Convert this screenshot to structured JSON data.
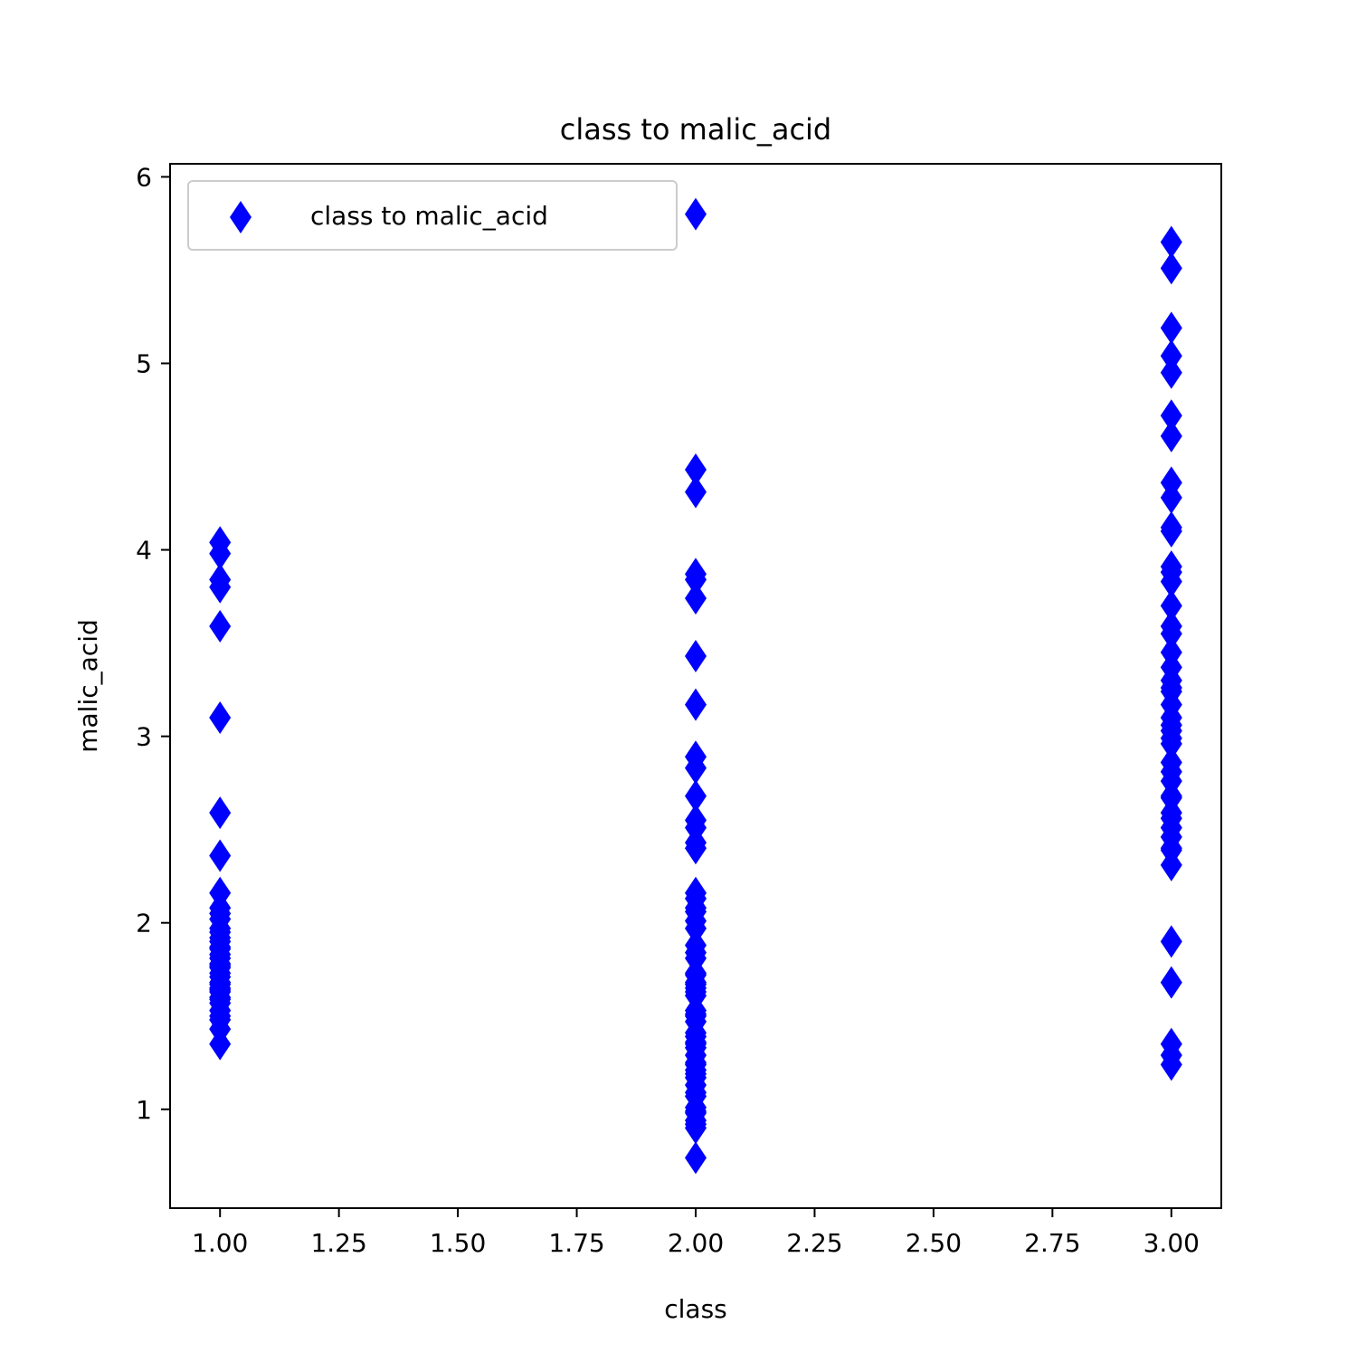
{
  "chart_data": {
    "type": "scatter",
    "title": "class to malic_acid",
    "xlabel": "class",
    "ylabel": "malic_acid",
    "xlim": [
      0.895,
      3.105
    ],
    "ylim": [
      0.47,
      6.07
    ],
    "x_ticks": [
      1.0,
      1.25,
      1.5,
      1.75,
      2.0,
      2.25,
      2.5,
      2.75,
      3.0
    ],
    "x_tick_labels": [
      "1.00",
      "1.25",
      "1.50",
      "1.75",
      "2.00",
      "2.25",
      "2.50",
      "2.75",
      "3.00"
    ],
    "y_ticks": [
      1,
      2,
      3,
      4,
      5,
      6
    ],
    "y_tick_labels": [
      "1",
      "2",
      "3",
      "4",
      "5",
      "6"
    ],
    "grid": false,
    "legend": {
      "position": "upper-left",
      "entries": [
        "class to malic_acid"
      ]
    },
    "marker": "diamond",
    "color": "#0000ff",
    "series": [
      {
        "name": "class to malic_acid",
        "points": [
          [
            1,
            4.04
          ],
          [
            1,
            3.98
          ],
          [
            1,
            3.84
          ],
          [
            1,
            3.8
          ],
          [
            1,
            3.59
          ],
          [
            1,
            3.1
          ],
          [
            1,
            2.59
          ],
          [
            1,
            2.36
          ],
          [
            1,
            2.16
          ],
          [
            1,
            2.08
          ],
          [
            1,
            2.05
          ],
          [
            1,
            2.02
          ],
          [
            1,
            1.97
          ],
          [
            1,
            1.95
          ],
          [
            1,
            1.92
          ],
          [
            1,
            1.9
          ],
          [
            1,
            1.87
          ],
          [
            1,
            1.86
          ],
          [
            1,
            1.83
          ],
          [
            1,
            1.81
          ],
          [
            1,
            1.78
          ],
          [
            1,
            1.77
          ],
          [
            1,
            1.76
          ],
          [
            1,
            1.73
          ],
          [
            1,
            1.71
          ],
          [
            1,
            1.68
          ],
          [
            1,
            1.67
          ],
          [
            1,
            1.65
          ],
          [
            1,
            1.64
          ],
          [
            1,
            1.63
          ],
          [
            1,
            1.6
          ],
          [
            1,
            1.59
          ],
          [
            1,
            1.57
          ],
          [
            1,
            1.53
          ],
          [
            1,
            1.5
          ],
          [
            1,
            1.48
          ],
          [
            1,
            1.43
          ],
          [
            1,
            1.35
          ],
          [
            2,
            5.8
          ],
          [
            2,
            4.43
          ],
          [
            2,
            4.31
          ],
          [
            2,
            3.87
          ],
          [
            2,
            3.84
          ],
          [
            2,
            3.74
          ],
          [
            2,
            3.43
          ],
          [
            2,
            3.17
          ],
          [
            2,
            2.89
          ],
          [
            2,
            2.83
          ],
          [
            2,
            2.68
          ],
          [
            2,
            2.55
          ],
          [
            2,
            2.51
          ],
          [
            2,
            2.43
          ],
          [
            2,
            2.4
          ],
          [
            2,
            2.16
          ],
          [
            2,
            2.13
          ],
          [
            2,
            2.08
          ],
          [
            2,
            2.06
          ],
          [
            2,
            2.01
          ],
          [
            2,
            1.97
          ],
          [
            2,
            1.88
          ],
          [
            2,
            1.84
          ],
          [
            2,
            1.81
          ],
          [
            2,
            1.73
          ],
          [
            2,
            1.72
          ],
          [
            2,
            1.68
          ],
          [
            2,
            1.67
          ],
          [
            2,
            1.65
          ],
          [
            2,
            1.63
          ],
          [
            2,
            1.61
          ],
          [
            2,
            1.53
          ],
          [
            2,
            1.51
          ],
          [
            2,
            1.5
          ],
          [
            2,
            1.47
          ],
          [
            2,
            1.41
          ],
          [
            2,
            1.39
          ],
          [
            2,
            1.36
          ],
          [
            2,
            1.35
          ],
          [
            2,
            1.33
          ],
          [
            2,
            1.29
          ],
          [
            2,
            1.25
          ],
          [
            2,
            1.24
          ],
          [
            2,
            1.21
          ],
          [
            2,
            1.19
          ],
          [
            2,
            1.17
          ],
          [
            2,
            1.13
          ],
          [
            2,
            1.09
          ],
          [
            2,
            1.07
          ],
          [
            2,
            1.01
          ],
          [
            2,
            0.99
          ],
          [
            2,
            0.98
          ],
          [
            2,
            0.94
          ],
          [
            2,
            0.92
          ],
          [
            2,
            0.9
          ],
          [
            2,
            0.74
          ],
          [
            3,
            5.65
          ],
          [
            3,
            5.51
          ],
          [
            3,
            5.19
          ],
          [
            3,
            5.04
          ],
          [
            3,
            4.95
          ],
          [
            3,
            4.72
          ],
          [
            3,
            4.61
          ],
          [
            3,
            4.36
          ],
          [
            3,
            4.28
          ],
          [
            3,
            4.12
          ],
          [
            3,
            4.1
          ],
          [
            3,
            3.91
          ],
          [
            3,
            3.88
          ],
          [
            3,
            3.83
          ],
          [
            3,
            3.7
          ],
          [
            3,
            3.59
          ],
          [
            3,
            3.55
          ],
          [
            3,
            3.45
          ],
          [
            3,
            3.37
          ],
          [
            3,
            3.3
          ],
          [
            3,
            3.26
          ],
          [
            3,
            3.24
          ],
          [
            3,
            3.17
          ],
          [
            3,
            3.1
          ],
          [
            3,
            3.06
          ],
          [
            3,
            3.03
          ],
          [
            3,
            2.99
          ],
          [
            3,
            2.96
          ],
          [
            3,
            2.86
          ],
          [
            3,
            2.81
          ],
          [
            3,
            2.76
          ],
          [
            3,
            2.68
          ],
          [
            3,
            2.67
          ],
          [
            3,
            2.59
          ],
          [
            3,
            2.56
          ],
          [
            3,
            2.51
          ],
          [
            3,
            2.46
          ],
          [
            3,
            2.4
          ],
          [
            3,
            2.39
          ],
          [
            3,
            2.31
          ],
          [
            3,
            1.9
          ],
          [
            3,
            1.68
          ],
          [
            3,
            1.35
          ],
          [
            3,
            1.29
          ],
          [
            3,
            1.24
          ]
        ]
      }
    ]
  }
}
